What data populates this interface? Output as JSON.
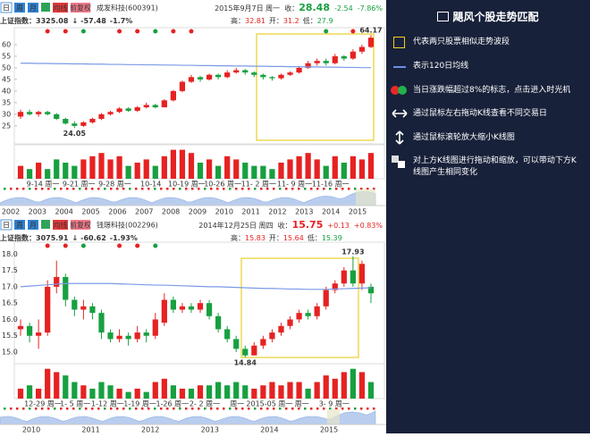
{
  "sidebar": {
    "title": "飓风个股走势匹配",
    "items": [
      "代表两只股票相似走势波段",
      "表示120日均线",
      "当日涨跌幅超过8%的标志，点击进入时光机",
      "通过鼠标左右拖动K线查看不同交易日",
      "通过鼠标滚轮放大缩小K线图",
      "对上方K线图进行拖动和缩放，可以带动下方K线图产生相同变化"
    ]
  },
  "panels": [
    {
      "buttons": [
        "日",
        "周",
        "月",
        "均线",
        "前复权"
      ],
      "stock": "成发科技(600391)",
      "date": "2015年9月7日 周一",
      "close_label": "收：",
      "close": "28.48",
      "change": "-2.54",
      "pct": "-7.86%",
      "index_label": "上证指数：",
      "index": "3325.08",
      "index_arrow": "↓",
      "index_change": "-57.48",
      "index_pct": "-1.7%",
      "high_label": "高：",
      "high": "32.81",
      "open_label": "开：",
      "open": "31.2",
      "low_label": "低：",
      "low": "27.9",
      "chart": {
        "type": "candlestick",
        "ylim": [
          18,
          65
        ],
        "yticks": [
          60,
          55,
          50,
          45,
          40,
          35,
          30,
          25
        ],
        "max_label": "64.17",
        "min_label": "24.05",
        "candles": [
          {
            "o": 29,
            "c": 31,
            "h": 32,
            "l": 28,
            "v": 4
          },
          {
            "o": 31,
            "c": 30,
            "h": 32,
            "l": 29.5,
            "v": 3
          },
          {
            "o": 30,
            "c": 31,
            "h": 31.5,
            "l": 29,
            "v": 5
          },
          {
            "o": 31,
            "c": 30,
            "h": 31.5,
            "l": 29.5,
            "v": 3
          },
          {
            "o": 30,
            "c": 28,
            "h": 30.5,
            "l": 27.5,
            "v": 6
          },
          {
            "o": 28,
            "c": 26,
            "h": 28.5,
            "l": 25.5,
            "v": 5
          },
          {
            "o": 26,
            "c": 25,
            "h": 27,
            "l": 24.05,
            "v": 4
          },
          {
            "o": 25,
            "c": 26.5,
            "h": 27,
            "l": 24.5,
            "v": 6
          },
          {
            "o": 26.5,
            "c": 28,
            "h": 28.5,
            "l": 26,
            "v": 7
          },
          {
            "o": 28,
            "c": 30,
            "h": 30.5,
            "l": 27.5,
            "v": 8
          },
          {
            "o": 30,
            "c": 31,
            "h": 31.5,
            "l": 29.5,
            "v": 6
          },
          {
            "o": 31,
            "c": 32.5,
            "h": 33,
            "l": 30.5,
            "v": 7
          },
          {
            "o": 32.5,
            "c": 31.5,
            "h": 33,
            "l": 31,
            "v": 4
          },
          {
            "o": 31.5,
            "c": 33,
            "h": 33.5,
            "l": 31,
            "v": 5
          },
          {
            "o": 33,
            "c": 34,
            "h": 35,
            "l": 32.5,
            "v": 6
          },
          {
            "o": 34,
            "c": 33,
            "h": 34.5,
            "l": 32.5,
            "v": 4
          },
          {
            "o": 33,
            "c": 36,
            "h": 36.5,
            "l": 33,
            "v": 7
          },
          {
            "o": 36,
            "c": 40,
            "h": 40.5,
            "l": 35.5,
            "v": 9
          },
          {
            "o": 40,
            "c": 44,
            "h": 44.5,
            "l": 39.5,
            "v": 9
          },
          {
            "o": 44,
            "c": 46,
            "h": 47,
            "l": 43.5,
            "v": 8
          },
          {
            "o": 46,
            "c": 45,
            "h": 46.5,
            "l": 44,
            "v": 5
          },
          {
            "o": 45,
            "c": 47,
            "h": 47.5,
            "l": 44.5,
            "v": 6
          },
          {
            "o": 47,
            "c": 46,
            "h": 47.5,
            "l": 45,
            "v": 4
          },
          {
            "o": 46,
            "c": 48,
            "h": 49,
            "l": 45.5,
            "v": 7
          },
          {
            "o": 48,
            "c": 49,
            "h": 50,
            "l": 47.5,
            "v": 6
          },
          {
            "o": 49,
            "c": 48,
            "h": 49.5,
            "l": 47,
            "v": 5
          },
          {
            "o": 48,
            "c": 47,
            "h": 48.5,
            "l": 46,
            "v": 4
          },
          {
            "o": 47,
            "c": 46,
            "h": 47.5,
            "l": 45,
            "v": 4
          },
          {
            "o": 46,
            "c": 45.5,
            "h": 46.5,
            "l": 44.5,
            "v": 3
          },
          {
            "o": 45.5,
            "c": 47,
            "h": 47.5,
            "l": 45,
            "v": 5
          },
          {
            "o": 47,
            "c": 48,
            "h": 48.5,
            "l": 46.5,
            "v": 6
          },
          {
            "o": 48,
            "c": 50,
            "h": 50.5,
            "l": 47.5,
            "v": 7
          },
          {
            "o": 50,
            "c": 52,
            "h": 53,
            "l": 49.5,
            "v": 8
          },
          {
            "o": 52,
            "c": 53,
            "h": 54,
            "l": 51,
            "v": 6
          },
          {
            "o": 53,
            "c": 52,
            "h": 54,
            "l": 51,
            "v": 4
          },
          {
            "o": 52,
            "c": 55,
            "h": 56,
            "l": 51.5,
            "v": 7
          },
          {
            "o": 55,
            "c": 54,
            "h": 55.5,
            "l": 53,
            "v": 5
          },
          {
            "o": 54,
            "c": 57,
            "h": 58,
            "l": 53.5,
            "v": 7
          },
          {
            "o": 57,
            "c": 59,
            "h": 60,
            "l": 56,
            "v": 6
          },
          {
            "o": 59,
            "c": 63,
            "h": 64.17,
            "l": 58.5,
            "v": 8
          }
        ],
        "ma120": [
          52,
          52,
          51.9,
          51.9,
          51.8,
          51.8,
          51.7,
          51.7,
          51.6,
          51.6,
          51.5,
          51.5,
          51.4,
          51.4,
          51.3,
          51.3,
          51.2,
          51.2,
          51.1,
          51.1,
          51,
          51,
          50.9,
          50.9,
          50.8,
          50.8,
          50.7,
          50.7,
          50.6,
          50.6,
          50.5,
          50.5,
          50.4,
          50.4,
          50.3,
          50.3,
          50.2,
          50.2,
          50.1,
          50.1
        ],
        "dates": [
          "9-14 周一",
          "9-21 周一",
          "9-28 周一",
          "10-14",
          "10-19 周一",
          "10-26 周一",
          "11- 2 周一",
          "11- 9 周一",
          "11-16 周一"
        ],
        "years": [
          "2002",
          "2003",
          "2004",
          "2005",
          "2006",
          "2007",
          "2008",
          "2009",
          "2010",
          "2011",
          "2012",
          "2013",
          "2014",
          "2015"
        ]
      }
    },
    {
      "buttons": [
        "日",
        "周",
        "月",
        "均线",
        "前复权"
      ],
      "stock": "钱璟科技(002296)",
      "date": "2014年12月25日 周四",
      "close_label": "收：",
      "close": "15.75",
      "change": "+0.13",
      "pct": "+0.83%",
      "index_label": "上证指数：",
      "index": "3075.91",
      "index_arrow": "↓",
      "index_change": "-60.62",
      "index_pct": "-1.93%",
      "high_label": "高：",
      "high": "15.83",
      "open_label": "开：",
      "open": "15.64",
      "low_label": "低：",
      "low": "15.39",
      "chart": {
        "type": "candlestick",
        "ylim": [
          14.7,
          18.2
        ],
        "yticks": [
          {
            "value": 18,
            "label": "18.0"
          },
          17.5,
          {
            "value": 17,
            "label": "17.0"
          },
          16.5,
          {
            "value": 16,
            "label": "16.0"
          },
          15.5,
          {
            "value": 15,
            "label": "15.0"
          }
        ],
        "max_label": "17.93",
        "min_label": "14.84",
        "candles": [
          {
            "o": 15.7,
            "c": 15.8,
            "h": 16.0,
            "l": 15.5,
            "v": 3
          },
          {
            "o": 15.8,
            "c": 15.5,
            "h": 15.9,
            "l": 15.3,
            "v": 4
          },
          {
            "o": 15.5,
            "c": 15.6,
            "h": 16.0,
            "l": 15.1,
            "v": 3
          },
          {
            "o": 15.6,
            "c": 17.0,
            "h": 17.2,
            "l": 15.5,
            "v": 9
          },
          {
            "o": 17.0,
            "c": 17.3,
            "h": 17.8,
            "l": 16.8,
            "v": 8
          },
          {
            "o": 17.3,
            "c": 16.6,
            "h": 17.4,
            "l": 16.4,
            "v": 7
          },
          {
            "o": 16.6,
            "c": 16.3,
            "h": 16.7,
            "l": 16.1,
            "v": 5
          },
          {
            "o": 16.3,
            "c": 16.4,
            "h": 16.6,
            "l": 16.0,
            "v": 4
          },
          {
            "o": 16.4,
            "c": 16.2,
            "h": 16.5,
            "l": 16.0,
            "v": 3
          },
          {
            "o": 16.2,
            "c": 15.6,
            "h": 16.3,
            "l": 15.4,
            "v": 5
          },
          {
            "o": 15.6,
            "c": 15.4,
            "h": 15.7,
            "l": 15.3,
            "v": 4
          },
          {
            "o": 15.4,
            "c": 15.5,
            "h": 15.7,
            "l": 15.3,
            "v": 3
          },
          {
            "o": 15.5,
            "c": 15.4,
            "h": 15.6,
            "l": 15.2,
            "v": 2
          },
          {
            "o": 15.4,
            "c": 15.6,
            "h": 15.8,
            "l": 15.3,
            "v": 3
          },
          {
            "o": 15.6,
            "c": 15.5,
            "h": 15.7,
            "l": 15.3,
            "v": 2
          },
          {
            "o": 15.5,
            "c": 16.0,
            "h": 16.2,
            "l": 15.4,
            "v": 5
          },
          {
            "o": 15.9,
            "c": 16.6,
            "h": 16.8,
            "l": 15.8,
            "v": 6
          },
          {
            "o": 16.6,
            "c": 16.3,
            "h": 16.7,
            "l": 16.2,
            "v": 4
          },
          {
            "o": 16.3,
            "c": 16.4,
            "h": 16.5,
            "l": 16.2,
            "v": 3
          },
          {
            "o": 16.4,
            "c": 16.3,
            "h": 16.5,
            "l": 16.2,
            "v": 3
          },
          {
            "o": 16.3,
            "c": 16.5,
            "h": 16.6,
            "l": 16.2,
            "v": 4
          },
          {
            "o": 16.5,
            "c": 16.1,
            "h": 16.6,
            "l": 16.0,
            "v": 4
          },
          {
            "o": 16.1,
            "c": 15.7,
            "h": 16.2,
            "l": 15.6,
            "v": 5
          },
          {
            "o": 15.7,
            "c": 15.4,
            "h": 15.8,
            "l": 15.3,
            "v": 4
          },
          {
            "o": 15.4,
            "c": 15.1,
            "h": 15.5,
            "l": 15.0,
            "v": 5
          },
          {
            "o": 15.1,
            "c": 14.9,
            "h": 15.2,
            "l": 14.84,
            "v": 4
          },
          {
            "o": 14.9,
            "c": 15.2,
            "h": 15.3,
            "l": 14.9,
            "v": 3
          },
          {
            "o": 15.2,
            "c": 15.4,
            "h": 15.5,
            "l": 15.1,
            "v": 4
          },
          {
            "o": 15.4,
            "c": 15.6,
            "h": 15.7,
            "l": 15.3,
            "v": 5
          },
          {
            "o": 15.6,
            "c": 15.8,
            "h": 15.9,
            "l": 15.5,
            "v": 4
          },
          {
            "o": 15.8,
            "c": 16.0,
            "h": 16.1,
            "l": 15.7,
            "v": 5
          },
          {
            "o": 16.0,
            "c": 16.2,
            "h": 16.3,
            "l": 15.9,
            "v": 5
          },
          {
            "o": 16.2,
            "c": 16.1,
            "h": 16.3,
            "l": 16.0,
            "v": 3
          },
          {
            "o": 16.1,
            "c": 16.4,
            "h": 16.5,
            "l": 16.0,
            "v": 5
          },
          {
            "o": 16.4,
            "c": 16.9,
            "h": 17.0,
            "l": 16.3,
            "v": 7
          },
          {
            "o": 16.9,
            "c": 17.1,
            "h": 17.2,
            "l": 16.8,
            "v": 6
          },
          {
            "o": 17.1,
            "c": 17.5,
            "h": 17.6,
            "l": 17.0,
            "v": 8
          },
          {
            "o": 17.5,
            "c": 17.1,
            "h": 17.93,
            "l": 17.0,
            "v": 9
          },
          {
            "o": 17.1,
            "c": 17.7,
            "h": 17.8,
            "l": 16.9,
            "v": 8
          },
          {
            "o": 17.0,
            "c": 16.8,
            "h": 17.1,
            "l": 16.5,
            "v": 5
          }
        ],
        "ma120": [
          17.0,
          17.02,
          17.04,
          17.06,
          17.08,
          17.1,
          17.1,
          17.1,
          17.1,
          17.1,
          17.1,
          17.09,
          17.08,
          17.07,
          17.06,
          17.05,
          17.05,
          17.04,
          17.03,
          17.02,
          17.01,
          17.0,
          17.0,
          16.99,
          16.98,
          16.97,
          16.96,
          16.95,
          16.95,
          16.94,
          16.93,
          16.93,
          16.92,
          16.92,
          16.92,
          16.93,
          16.94,
          16.95,
          16.96,
          16.97
        ],
        "dates": [
          "12-29 周一",
          "1- 5 周一",
          "1-12 周一",
          "1-19 周一",
          "1-26 周一",
          "2- 2 周一",
          "周一",
          "2015-05 周一",
          "周一",
          "3- 9 周一"
        ],
        "years": [
          "2010",
          "2011",
          "2012",
          "2013",
          "2014",
          "2015"
        ]
      }
    }
  ]
}
